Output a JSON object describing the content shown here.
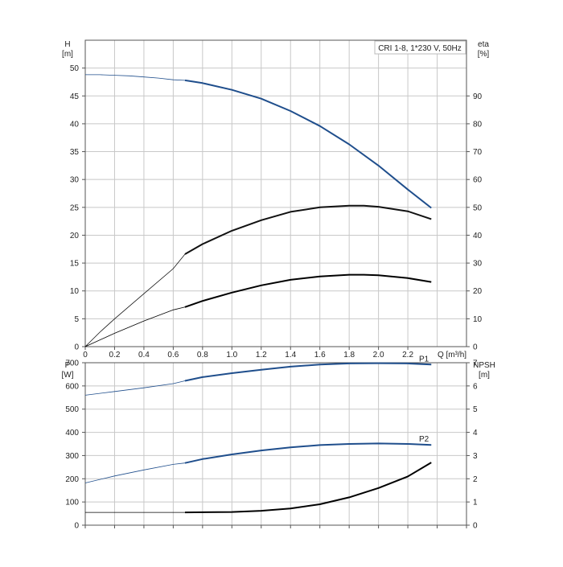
{
  "chart_data": [
    {
      "type": "line",
      "title": "CRI 1-8, 1*230 V, 50Hz",
      "ylabel_left": "H",
      "ylabel_left_unit": "[m]",
      "ylabel_right": "eta",
      "ylabel_right_unit": "[%]",
      "xlabel": "Q [m³/h]",
      "xlim": [
        0,
        2.6
      ],
      "ylim_left": [
        0,
        55
      ],
      "ylim_right": [
        0,
        110
      ],
      "x_ticks": [
        "0",
        "0.2",
        "0.4",
        "0.6",
        "0.8",
        "1.0",
        "1.2",
        "1.4",
        "1.6",
        "1.8",
        "2.0",
        "2.2"
      ],
      "y_left_ticks": [
        "0",
        "5",
        "10",
        "15",
        "20",
        "25",
        "30",
        "35",
        "40",
        "45",
        "50"
      ],
      "y_right_ticks": [
        "0",
        "10",
        "20",
        "30",
        "40",
        "50",
        "60",
        "70",
        "80",
        "90"
      ],
      "grid": true,
      "series": [
        {
          "color": "#1f4e8c",
          "axis": "left",
          "op_start": 0.68,
          "x": [
            0,
            0.1,
            0.2,
            0.3,
            0.4,
            0.5,
            0.6,
            0.68,
            0.8,
            1.0,
            1.2,
            1.4,
            1.6,
            1.8,
            2.0,
            2.2,
            2.36
          ],
          "values": [
            48.8,
            48.8,
            48.7,
            48.6,
            48.4,
            48.2,
            47.9,
            47.8,
            47.3,
            46.1,
            44.5,
            42.3,
            39.6,
            36.3,
            32.5,
            28.2,
            24.9
          ]
        },
        {
          "color": "#111111",
          "axis": "left",
          "op_start": 0.68,
          "x": [
            0,
            0.1,
            0.2,
            0.4,
            0.6,
            0.68,
            0.8,
            1.0,
            1.2,
            1.4,
            1.6,
            1.8,
            1.9,
            2.0,
            2.2,
            2.36
          ],
          "values": [
            0,
            2.6,
            5.0,
            9.5,
            14.0,
            16.6,
            18.4,
            20.8,
            22.7,
            24.2,
            25.0,
            25.3,
            25.3,
            25.1,
            24.3,
            22.9
          ]
        },
        {
          "color": "#000000",
          "axis": "left",
          "op_start": 0.68,
          "x": [
            0,
            0.2,
            0.4,
            0.6,
            0.68,
            0.8,
            1.0,
            1.2,
            1.4,
            1.6,
            1.8,
            1.9,
            2.0,
            2.2,
            2.36
          ],
          "values": [
            0,
            2.4,
            4.6,
            6.6,
            7.1,
            8.2,
            9.7,
            11.0,
            12.0,
            12.6,
            12.9,
            12.9,
            12.8,
            12.3,
            11.6
          ]
        }
      ]
    },
    {
      "type": "line",
      "ylabel_left": "P",
      "ylabel_left_unit": "[W]",
      "ylabel_right": "NPSH",
      "ylabel_right_unit": "[m]",
      "xlim": [
        0,
        2.6
      ],
      "ylim_left": [
        0,
        700
      ],
      "ylim_right": [
        0,
        7
      ],
      "y_left_ticks": [
        "0",
        "100",
        "200",
        "300",
        "400",
        "500",
        "600",
        "700"
      ],
      "y_right_ticks": [
        "0",
        "1",
        "2",
        "3",
        "4",
        "5",
        "6",
        "7"
      ],
      "grid": true,
      "series": [
        {
          "name": "P1",
          "color": "#1f4e8c",
          "axis": "left",
          "op_start": 0.68,
          "x": [
            0,
            0.2,
            0.4,
            0.6,
            0.68,
            0.8,
            1.0,
            1.2,
            1.4,
            1.6,
            1.8,
            2.0,
            2.2,
            2.36
          ],
          "values": [
            560,
            576,
            592,
            610,
            622,
            638,
            655,
            670,
            683,
            692,
            697,
            698,
            697,
            692
          ]
        },
        {
          "name": "P2",
          "color": "#1f4e8c",
          "axis": "left",
          "op_start": 0.68,
          "x": [
            0,
            0.2,
            0.4,
            0.6,
            0.68,
            0.8,
            1.0,
            1.2,
            1.4,
            1.6,
            1.8,
            2.0,
            2.2,
            2.36
          ],
          "values": [
            182,
            212,
            238,
            262,
            268,
            285,
            305,
            322,
            335,
            345,
            350,
            352,
            350,
            346
          ]
        },
        {
          "color": "#000000",
          "axis": "right",
          "op_start": 0.68,
          "x": [
            0,
            0.4,
            0.68,
            1.0,
            1.2,
            1.4,
            1.6,
            1.8,
            2.0,
            2.2,
            2.36
          ],
          "values": [
            0.55,
            0.55,
            0.55,
            0.57,
            0.62,
            0.72,
            0.9,
            1.2,
            1.6,
            2.1,
            2.7
          ]
        }
      ]
    }
  ]
}
